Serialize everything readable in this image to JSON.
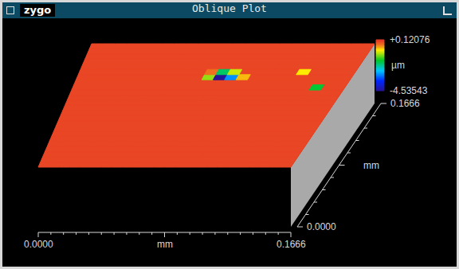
{
  "chart_data": {
    "type": "surface",
    "title": "Oblique Plot",
    "logo": "zygo",
    "xlabel": "mm",
    "ylabel": "mm",
    "colorbar_label": "µm",
    "x": [
      0.0035,
      0.0104,
      0.0174,
      0.0243,
      0.0312,
      0.0382,
      0.0451,
      0.0521,
      0.059,
      0.066,
      0.0729,
      0.0799,
      0.0868,
      0.0937,
      0.1007,
      0.1076,
      0.1146,
      0.1215,
      0.1284,
      0.1354,
      0.1423,
      0.1493,
      0.1562,
      0.1632
    ],
    "y": [
      0.0035,
      0.0104,
      0.0174,
      0.0243,
      0.0312,
      0.0382,
      0.0451,
      0.0521,
      0.059,
      0.066,
      0.0729,
      0.0799,
      0.0868,
      0.0937,
      0.1007,
      0.1076,
      0.1146,
      0.1215,
      0.1284,
      0.1354,
      0.1423,
      0.1493,
      0.1562,
      0.1632
    ],
    "z": [
      [
        0,
        0,
        0,
        0,
        0,
        0,
        0,
        0,
        0,
        0,
        0,
        0,
        0,
        0,
        0,
        0,
        0,
        0,
        0,
        0,
        0,
        0,
        0,
        0
      ],
      [
        0,
        0,
        0,
        0,
        0,
        0,
        0,
        0,
        0,
        0,
        0,
        0,
        0,
        0,
        0,
        0,
        0,
        0,
        0,
        0,
        0,
        0,
        0,
        0
      ],
      [
        0,
        0,
        0,
        0,
        0,
        0,
        0,
        0,
        0,
        0,
        0,
        0,
        0,
        0,
        0,
        0,
        0,
        0,
        0,
        0,
        0,
        0,
        0,
        0
      ],
      [
        0,
        0,
        0,
        0,
        0,
        0,
        0,
        0,
        0,
        0,
        0,
        0,
        0,
        0,
        0,
        0,
        0,
        0,
        0,
        0,
        0,
        0,
        0,
        0
      ],
      [
        0,
        0,
        0,
        0,
        0,
        0,
        0,
        0,
        0,
        0,
        0,
        0,
        0,
        0,
        0,
        0,
        0,
        0,
        0,
        0,
        0,
        0,
        0,
        0
      ],
      [
        0,
        0,
        0,
        0,
        0,
        0,
        0,
        0,
        0,
        0,
        0,
        0,
        0,
        0,
        0,
        0,
        0,
        0,
        0,
        0,
        0,
        0,
        0,
        0
      ],
      [
        0,
        0,
        0,
        0,
        0,
        0,
        0,
        0,
        0,
        0,
        0,
        0,
        0,
        0,
        0,
        0,
        0,
        0,
        0,
        0,
        0,
        0,
        0,
        0
      ],
      [
        0,
        0,
        0,
        0,
        0,
        0,
        0,
        0,
        0,
        0,
        0,
        0,
        0,
        0,
        0,
        0,
        0,
        0,
        0,
        0,
        0,
        0,
        0,
        0
      ],
      [
        0,
        0,
        0,
        0,
        0,
        0,
        0,
        0,
        0,
        0,
        0,
        0,
        0,
        0,
        0,
        0,
        0,
        0,
        0,
        0,
        0,
        0,
        0,
        0
      ],
      [
        0,
        0,
        0,
        0,
        0,
        0,
        0,
        0,
        0,
        0,
        0,
        0,
        0,
        0,
        0,
        0,
        0,
        0,
        0,
        0,
        0,
        0,
        0,
        0
      ],
      [
        0,
        0,
        0,
        0,
        0,
        0,
        0,
        0,
        0,
        0,
        0,
        0,
        0,
        0,
        0,
        0,
        0,
        0,
        0,
        0,
        0,
        0,
        0,
        0
      ],
      [
        0,
        0,
        0,
        0,
        0,
        0,
        0,
        0,
        0,
        0,
        0,
        0,
        0,
        0,
        0,
        0,
        0,
        0,
        0,
        0,
        0,
        0,
        0,
        0
      ],
      [
        0,
        0,
        0,
        0,
        0,
        0,
        0,
        0,
        0,
        0,
        0,
        0,
        0,
        0,
        0,
        0,
        0,
        0,
        0,
        0,
        0,
        0,
        0,
        0
      ],
      [
        0,
        0,
        0,
        0,
        0,
        0,
        0,
        0,
        0,
        0,
        0,
        0,
        0,
        0,
        0,
        0,
        0,
        0,
        0,
        0,
        0,
        0,
        0,
        0
      ],
      [
        0,
        0,
        0,
        0,
        0,
        0,
        0,
        0,
        0,
        0,
        0,
        0,
        0,
        0,
        0,
        0,
        0,
        0,
        0,
        0,
        0,
        0,
        0,
        0
      ],
      [
        0,
        0,
        0,
        0,
        0,
        0,
        0,
        0,
        0,
        0,
        0,
        0,
        0,
        0,
        0,
        0,
        0,
        0,
        0,
        0,
        0,
        -1.8,
        0,
        0
      ],
      [
        0,
        0,
        0,
        0,
        0,
        0,
        0,
        0,
        0,
        0,
        0,
        0,
        0,
        0,
        0,
        0,
        0,
        0,
        0,
        0,
        0,
        0,
        0,
        0
      ],
      [
        0,
        0,
        0,
        0,
        0,
        0,
        0,
        0,
        0,
        0,
        0,
        -1.2,
        -4.5,
        -3,
        -0.6,
        0,
        0,
        0,
        0,
        0,
        0,
        0,
        0,
        0
      ],
      [
        0,
        0,
        0,
        0,
        0,
        0,
        0,
        0,
        0,
        0,
        0,
        -0.3,
        -2,
        -1,
        0,
        0,
        0,
        0,
        0,
        -0.8,
        0,
        0,
        0,
        0
      ],
      [
        0,
        0,
        0,
        0,
        0,
        0,
        0,
        0,
        0,
        0,
        0,
        0,
        0,
        0,
        0,
        0,
        0,
        0,
        0,
        0,
        0,
        0,
        0,
        0
      ],
      [
        0,
        0,
        0,
        0,
        0,
        0,
        0,
        0,
        0,
        0,
        0,
        0,
        0,
        0,
        0,
        0,
        0,
        0,
        0,
        0,
        0,
        0,
        0,
        0
      ],
      [
        0,
        0,
        0,
        0,
        0,
        0,
        0,
        0,
        0,
        0,
        0,
        0,
        0,
        0,
        0,
        0,
        0,
        0,
        0,
        0,
        0,
        0,
        0,
        0
      ],
      [
        0,
        0,
        0,
        0,
        0,
        0,
        0,
        0,
        0,
        0,
        0,
        0,
        0,
        0,
        0,
        0,
        0,
        0,
        0,
        0,
        0,
        0,
        0,
        0
      ],
      [
        0,
        0,
        0,
        0,
        0,
        0,
        0,
        0,
        0,
        0,
        0,
        0,
        0,
        0,
        0,
        0,
        0,
        0,
        0,
        0,
        0,
        0,
        0,
        0
      ]
    ],
    "xlim": [
      0,
      0.1666
    ],
    "ylim": [
      0,
      0.1666
    ],
    "xticks": [
      {
        "value": 0,
        "label": "0.0000"
      },
      {
        "value": 0.1666,
        "label": "0.1666"
      }
    ],
    "yticks": [
      {
        "value": 0,
        "label": "0.0000"
      },
      {
        "value": 0.1666,
        "label": "0.1666"
      }
    ],
    "zlim": [
      -4.53543,
      0.12076
    ],
    "zticks": [
      {
        "value": 0.12076,
        "label": "+0.12076"
      },
      -4.53543
    ]
  }
}
